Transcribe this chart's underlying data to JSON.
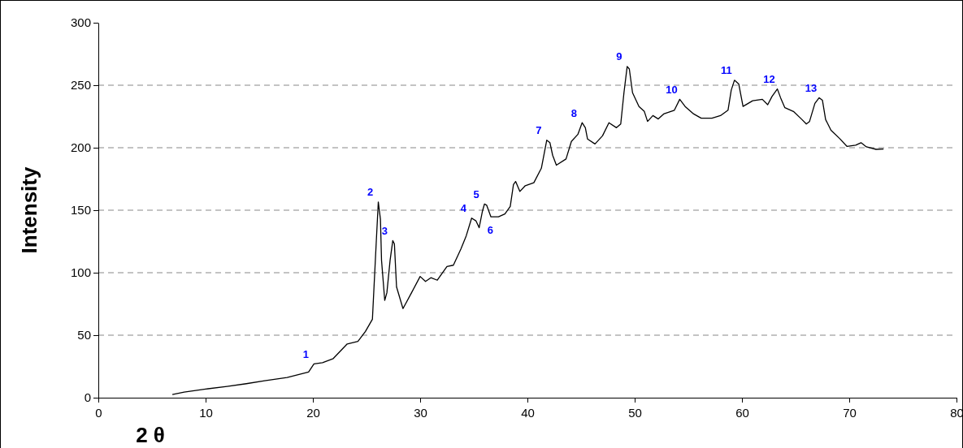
{
  "chart_data": {
    "type": "line",
    "xlabel": "2 θ",
    "ylabel": "Intensity",
    "xlim": [
      0,
      80
    ],
    "ylim": [
      0,
      300
    ],
    "xticks": [
      0,
      10,
      20,
      30,
      40,
      50,
      60,
      70,
      80
    ],
    "yticks": [
      0,
      50,
      100,
      150,
      200,
      250,
      300
    ],
    "grid": "y",
    "marker": "none",
    "line_style": "solid",
    "series": [
      {
        "color": "#000000",
        "x": [
          6.9,
          8,
          10.0,
          12,
          13.8,
          15.5,
          17.6,
          19.6,
          20.1,
          20.9,
          21.9,
          23.2,
          24.2,
          24.9,
          25.55,
          25.9,
          26.1,
          26.3,
          26.4,
          26.7,
          26.9,
          27.2,
          27.45,
          27.6,
          27.8,
          28.4,
          29.2,
          30,
          30.5,
          31,
          31.6,
          32.5,
          33.1,
          33.8,
          34.3,
          34.8,
          35.2,
          35.5,
          35.8,
          36.0,
          36.2,
          36.6,
          37.3,
          37.9,
          38.4,
          38.7,
          38.9,
          39.3,
          39.8,
          40.6,
          41.3,
          41.8,
          42.1,
          42.35,
          42.7,
          43.6,
          44.1,
          44.7,
          45.1,
          45.4,
          45.6,
          46.3,
          47.0,
          47.6,
          48.3,
          48.7,
          49.0,
          49.3,
          49.5,
          49.8,
          50.4,
          50.9,
          51.2,
          51.7,
          52.2,
          52.7,
          53.7,
          54.2,
          54.7,
          55.5,
          56.2,
          57.2,
          58.0,
          58.7,
          59.0,
          59.3,
          59.7,
          60.1,
          61.0,
          61.9,
          62.4,
          62.8,
          63.3,
          63.6,
          64.0,
          64.8,
          65.6,
          66.0,
          66.3,
          66.8,
          67.2,
          67.5,
          67.8,
          68.3,
          69.1,
          69.8,
          70.6,
          71.1,
          71.6,
          72.5,
          73.2
        ],
        "values": [
          2.5,
          4.5,
          6.9,
          9,
          11.2,
          13.5,
          16.2,
          20.5,
          27,
          28,
          31.3,
          43,
          45,
          53,
          62.7,
          123,
          156.6,
          142.6,
          110,
          77.8,
          84,
          110,
          125.7,
          123,
          88.6,
          71.3,
          84,
          97,
          93,
          96,
          94,
          105,
          106,
          119,
          129.6,
          143.7,
          141.5,
          136,
          149,
          155,
          154,
          144.7,
          144.7,
          147,
          153,
          170.6,
          173,
          165,
          169.6,
          172,
          183.6,
          206,
          204,
          194,
          186,
          191,
          205,
          210.6,
          220,
          216,
          207,
          203,
          209.5,
          220,
          216,
          219,
          244,
          265,
          263,
          244,
          233,
          229,
          221,
          225.7,
          223,
          227,
          230,
          238.7,
          233,
          227,
          223.6,
          223.6,
          225.7,
          230,
          246,
          254,
          251,
          233,
          237.6,
          238.7,
          234.4,
          241,
          247,
          240,
          232,
          229,
          222.5,
          219,
          221,
          235.5,
          240,
          238,
          222.5,
          214,
          207.4,
          201,
          202,
          204,
          200.7,
          198.7,
          199
        ]
      }
    ],
    "annotations": [
      {
        "text": "1",
        "x": 20.1,
        "y": 27
      },
      {
        "text": "2",
        "x": 26.1,
        "y": 156.6
      },
      {
        "text": "3",
        "x": 27.45,
        "y": 125.7
      },
      {
        "text": "4",
        "x": 34.8,
        "y": 143.7
      },
      {
        "text": "5",
        "x": 36.0,
        "y": 155
      },
      {
        "text": "6",
        "x": 37.3,
        "y": 144.7
      },
      {
        "text": "7",
        "x": 41.8,
        "y": 206
      },
      {
        "text": "8",
        "x": 45.1,
        "y": 220
      },
      {
        "text": "9",
        "x": 49.3,
        "y": 265
      },
      {
        "text": "10",
        "x": 54.2,
        "y": 238.7
      },
      {
        "text": "11",
        "x": 59.3,
        "y": 254
      },
      {
        "text": "12",
        "x": 63.3,
        "y": 247
      },
      {
        "text": "13",
        "x": 67.2,
        "y": 240
      }
    ]
  }
}
